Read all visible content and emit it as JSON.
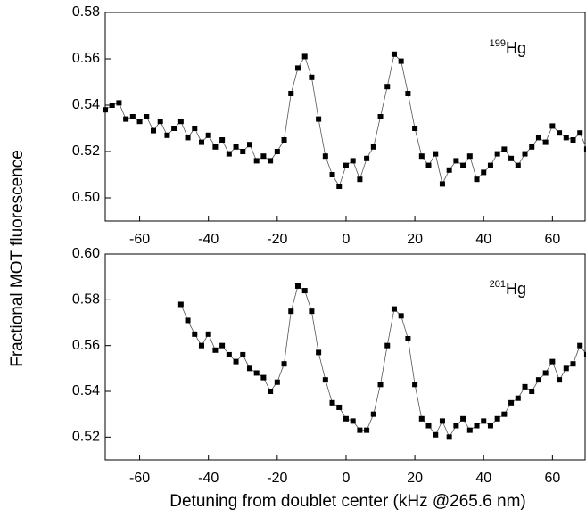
{
  "figure": {
    "xlabel": "Detuning from doublet center (kHz @265.6 nm)",
    "ylabel": "Fractional MOT fluorescence"
  },
  "chart_data": [
    {
      "type": "line",
      "annotation": {
        "mass": "199",
        "symbol": "Hg"
      },
      "x": [
        -70,
        -68,
        -66,
        -64,
        -62,
        -60,
        -58,
        -56,
        -54,
        -52,
        -50,
        -48,
        -46,
        -44,
        -42,
        -40,
        -38,
        -36,
        -34,
        -32,
        -30,
        -28,
        -26,
        -24,
        -22,
        -20,
        -18,
        -16,
        -14,
        -12,
        -10,
        -8,
        -6,
        -4,
        -2,
        0,
        2,
        4,
        6,
        8,
        10,
        12,
        14,
        16,
        18,
        20,
        22,
        24,
        26,
        28,
        30,
        32,
        34,
        36,
        38,
        40,
        42,
        44,
        46,
        48,
        50,
        52,
        54,
        56,
        58,
        60,
        62,
        64,
        66,
        68,
        70
      ],
      "series": [
        {
          "color": "#000000",
          "values": [
            0.538,
            0.54,
            0.541,
            0.534,
            0.535,
            0.533,
            0.535,
            0.529,
            0.533,
            0.527,
            0.53,
            0.533,
            0.526,
            0.53,
            0.524,
            0.527,
            0.522,
            0.525,
            0.519,
            0.522,
            0.52,
            0.523,
            0.516,
            0.518,
            0.516,
            0.52,
            0.525,
            0.545,
            0.556,
            0.561,
            0.552,
            0.534,
            0.518,
            0.51,
            0.505,
            0.514,
            0.516,
            0.508,
            0.517,
            0.522,
            0.535,
            0.548,
            0.562,
            0.559,
            0.545,
            0.53,
            0.518,
            0.514,
            0.519,
            0.506,
            0.512,
            0.516,
            0.514,
            0.518,
            0.508,
            0.511,
            0.514,
            0.519,
            0.521,
            0.517,
            0.514,
            0.519,
            0.522,
            0.526,
            0.524,
            0.531,
            0.528,
            0.526,
            0.525,
            0.528,
            0.521
          ]
        }
      ],
      "xlim": [
        -70,
        69.5
      ],
      "xticks": [
        -60,
        -40,
        -20,
        0,
        20,
        40,
        60
      ],
      "ylim": [
        0.49,
        0.58
      ],
      "yticks": [
        {
          "value": 0.5,
          "label": "0.50"
        },
        0.52,
        0.54,
        0.56,
        0.58
      ]
    },
    {
      "type": "line",
      "annotation": {
        "mass": "201",
        "symbol": "Hg"
      },
      "x": [
        -48,
        -46,
        -44,
        -42,
        -40,
        -38,
        -36,
        -34,
        -32,
        -30,
        -28,
        -26,
        -24,
        -22,
        -20,
        -18,
        -16,
        -14,
        -12,
        -10,
        -8,
        -6,
        -4,
        -2,
        0,
        2,
        4,
        6,
        8,
        10,
        12,
        14,
        16,
        18,
        20,
        22,
        24,
        26,
        28,
        30,
        32,
        34,
        36,
        38,
        40,
        42,
        44,
        46,
        48,
        50,
        52,
        54,
        56,
        58,
        60,
        62,
        64,
        66,
        68,
        70
      ],
      "series": [
        {
          "color": "#000000",
          "values": [
            0.578,
            0.571,
            0.565,
            0.56,
            0.565,
            0.558,
            0.56,
            0.556,
            0.553,
            0.556,
            0.55,
            0.548,
            0.546,
            0.54,
            0.544,
            0.552,
            0.575,
            0.586,
            0.584,
            0.575,
            0.557,
            0.545,
            0.535,
            0.533,
            0.528,
            0.527,
            0.523,
            0.523,
            0.53,
            0.543,
            0.56,
            0.576,
            0.573,
            0.563,
            0.543,
            0.528,
            0.525,
            0.521,
            0.527,
            0.52,
            0.525,
            0.528,
            0.523,
            0.525,
            0.527,
            0.525,
            0.528,
            0.53,
            0.535,
            0.537,
            0.542,
            0.54,
            0.545,
            0.548,
            0.553,
            0.545,
            0.55,
            0.552,
            0.56,
            0.556
          ]
        }
      ],
      "xlim": [
        -70,
        69.5
      ],
      "xticks": [
        -60,
        -40,
        -20,
        0,
        20,
        40,
        60
      ],
      "ylim": [
        0.51,
        0.6
      ],
      "yticks": [
        0.52,
        0.54,
        0.56,
        0.58,
        {
          "value": 0.6,
          "label": "0.60"
        }
      ]
    }
  ]
}
